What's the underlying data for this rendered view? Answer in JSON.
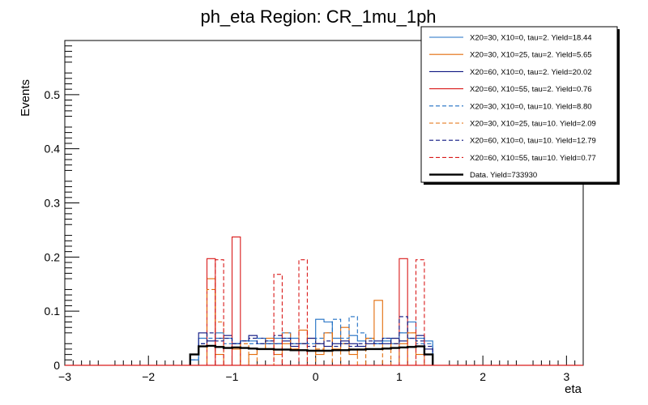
{
  "chart_data": {
    "type": "histogram",
    "title": "ph_eta Region: CR_1mu_1ph",
    "xlabel": "eta",
    "ylabel": "Events",
    "xlim": [
      -3.0,
      3.2
    ],
    "ylim": [
      0,
      0.6
    ],
    "xticks": [
      -3,
      -2,
      -1,
      0,
      1,
      2,
      3
    ],
    "yticks": [
      0,
      0.1,
      0.2,
      0.3,
      0.4,
      0.5
    ],
    "bin_edges": [
      -1.5,
      -1.4,
      -1.3,
      -1.2,
      -1.1,
      -1.0,
      -0.9,
      -0.8,
      -0.7,
      -0.6,
      -0.5,
      -0.4,
      -0.3,
      -0.2,
      -0.1,
      0.0,
      0.1,
      0.2,
      0.3,
      0.4,
      0.5,
      0.6,
      0.7,
      0.8,
      0.9,
      1.0,
      1.1,
      1.2,
      1.3,
      1.4
    ],
    "series": [
      {
        "name": "X20=30, X10=0, tau=2. Yield=18.44",
        "color": "#1f6fc4",
        "dash": false,
        "values": [
          0.01,
          0.05,
          0.045,
          0.06,
          0.05,
          0.04,
          0.045,
          0.045,
          0.04,
          0.045,
          0.05,
          0.06,
          0.05,
          0.04,
          0.05,
          0.085,
          0.08,
          0.05,
          0.04,
          0.055,
          0.045,
          0.05,
          0.04,
          0.045,
          0.05,
          0.06,
          0.08,
          0.05,
          0.045
        ]
      },
      {
        "name": "X20=30, X10=25, tau=2. Yield=5.65",
        "color": "#e36c0a",
        "dash": false,
        "values": [
          0.0,
          0.0,
          0.16,
          0.02,
          0.0,
          0.03,
          0.0,
          0.02,
          0.03,
          0.05,
          0.02,
          0.04,
          0.03,
          0.065,
          0.05,
          0.02,
          0.06,
          0.03,
          0.07,
          0.02,
          0.03,
          0.05,
          0.12,
          0.03,
          0.05,
          0.04,
          0.06,
          0.02,
          0.0
        ]
      },
      {
        "name": "X20=60, X10=0, tau=2. Yield=20.02",
        "color": "#0c1480",
        "dash": false,
        "values": [
          0.02,
          0.06,
          0.045,
          0.05,
          0.055,
          0.04,
          0.045,
          0.055,
          0.05,
          0.04,
          0.04,
          0.045,
          0.035,
          0.04,
          0.05,
          0.04,
          0.035,
          0.04,
          0.045,
          0.04,
          0.035,
          0.04,
          0.045,
          0.04,
          0.05,
          0.045,
          0.05,
          0.055,
          0.03
        ]
      },
      {
        "name": "X20=60, X10=55, tau=2. Yield=0.76",
        "color": "#d91a1a",
        "dash": false,
        "values": [
          0.0,
          0.0,
          0.197,
          0.0,
          0.0,
          0.237,
          0.0,
          0.0,
          0.0,
          0.0,
          0.0,
          0.0,
          0.0,
          0.0,
          0.0,
          0.0,
          0.0,
          0.0,
          0.0,
          0.0,
          0.0,
          0.0,
          0.0,
          0.0,
          0.0,
          0.197,
          0.0,
          0.0,
          0.0
        ]
      },
      {
        "name": "X20=30, X10=0, tau=10. Yield=8.80",
        "color": "#1f6fc4",
        "dash": true,
        "values": [
          0.01,
          0.04,
          0.05,
          0.05,
          0.04,
          0.04,
          0.045,
          0.04,
          0.05,
          0.04,
          0.04,
          0.05,
          0.04,
          0.04,
          0.04,
          0.05,
          0.06,
          0.085,
          0.05,
          0.09,
          0.06,
          0.05,
          0.04,
          0.05,
          0.04,
          0.06,
          0.05,
          0.04,
          0.04
        ]
      },
      {
        "name": "X20=30, X10=25, tau=10. Yield=2.09",
        "color": "#e36c0a",
        "dash": true,
        "values": [
          0.0,
          0.0,
          0.14,
          0.08,
          0.0,
          0.0,
          0.04,
          0.0,
          0.03,
          0.05,
          0.0,
          0.06,
          0.03,
          0.04,
          0.0,
          0.03,
          0.06,
          0.0,
          0.04,
          0.03,
          0.0,
          0.05,
          0.03,
          0.0,
          0.04,
          0.0,
          0.06,
          0.0,
          0.0
        ]
      },
      {
        "name": "X20=60, X10=0, tau=10. Yield=12.79",
        "color": "#0c1480",
        "dash": true,
        "values": [
          0.02,
          0.04,
          0.06,
          0.045,
          0.05,
          0.04,
          0.045,
          0.05,
          0.04,
          0.045,
          0.055,
          0.05,
          0.04,
          0.04,
          0.035,
          0.04,
          0.045,
          0.035,
          0.04,
          0.035,
          0.04,
          0.045,
          0.04,
          0.05,
          0.04,
          0.09,
          0.05,
          0.045,
          0.035
        ]
      },
      {
        "name": "X20=60, X10=55, tau=10. Yield=0.77",
        "color": "#d91a1a",
        "dash": true,
        "values": [
          0.0,
          0.0,
          0.0,
          0.195,
          0.0,
          0.0,
          0.0,
          0.0,
          0.0,
          0.0,
          0.168,
          0.0,
          0.0,
          0.195,
          0.0,
          0.0,
          0.0,
          0.0,
          0.0,
          0.0,
          0.0,
          0.0,
          0.0,
          0.0,
          0.0,
          0.0,
          0.0,
          0.195,
          0.0
        ]
      },
      {
        "name": "Data. Yield=733930",
        "color": "#000000",
        "dash": false,
        "thick": true,
        "values": [
          0.02,
          0.035,
          0.036,
          0.034,
          0.032,
          0.033,
          0.032,
          0.031,
          0.03,
          0.03,
          0.029,
          0.029,
          0.028,
          0.028,
          0.027,
          0.027,
          0.027,
          0.028,
          0.028,
          0.029,
          0.029,
          0.03,
          0.03,
          0.031,
          0.032,
          0.033,
          0.034,
          0.035,
          0.02
        ]
      }
    ]
  }
}
